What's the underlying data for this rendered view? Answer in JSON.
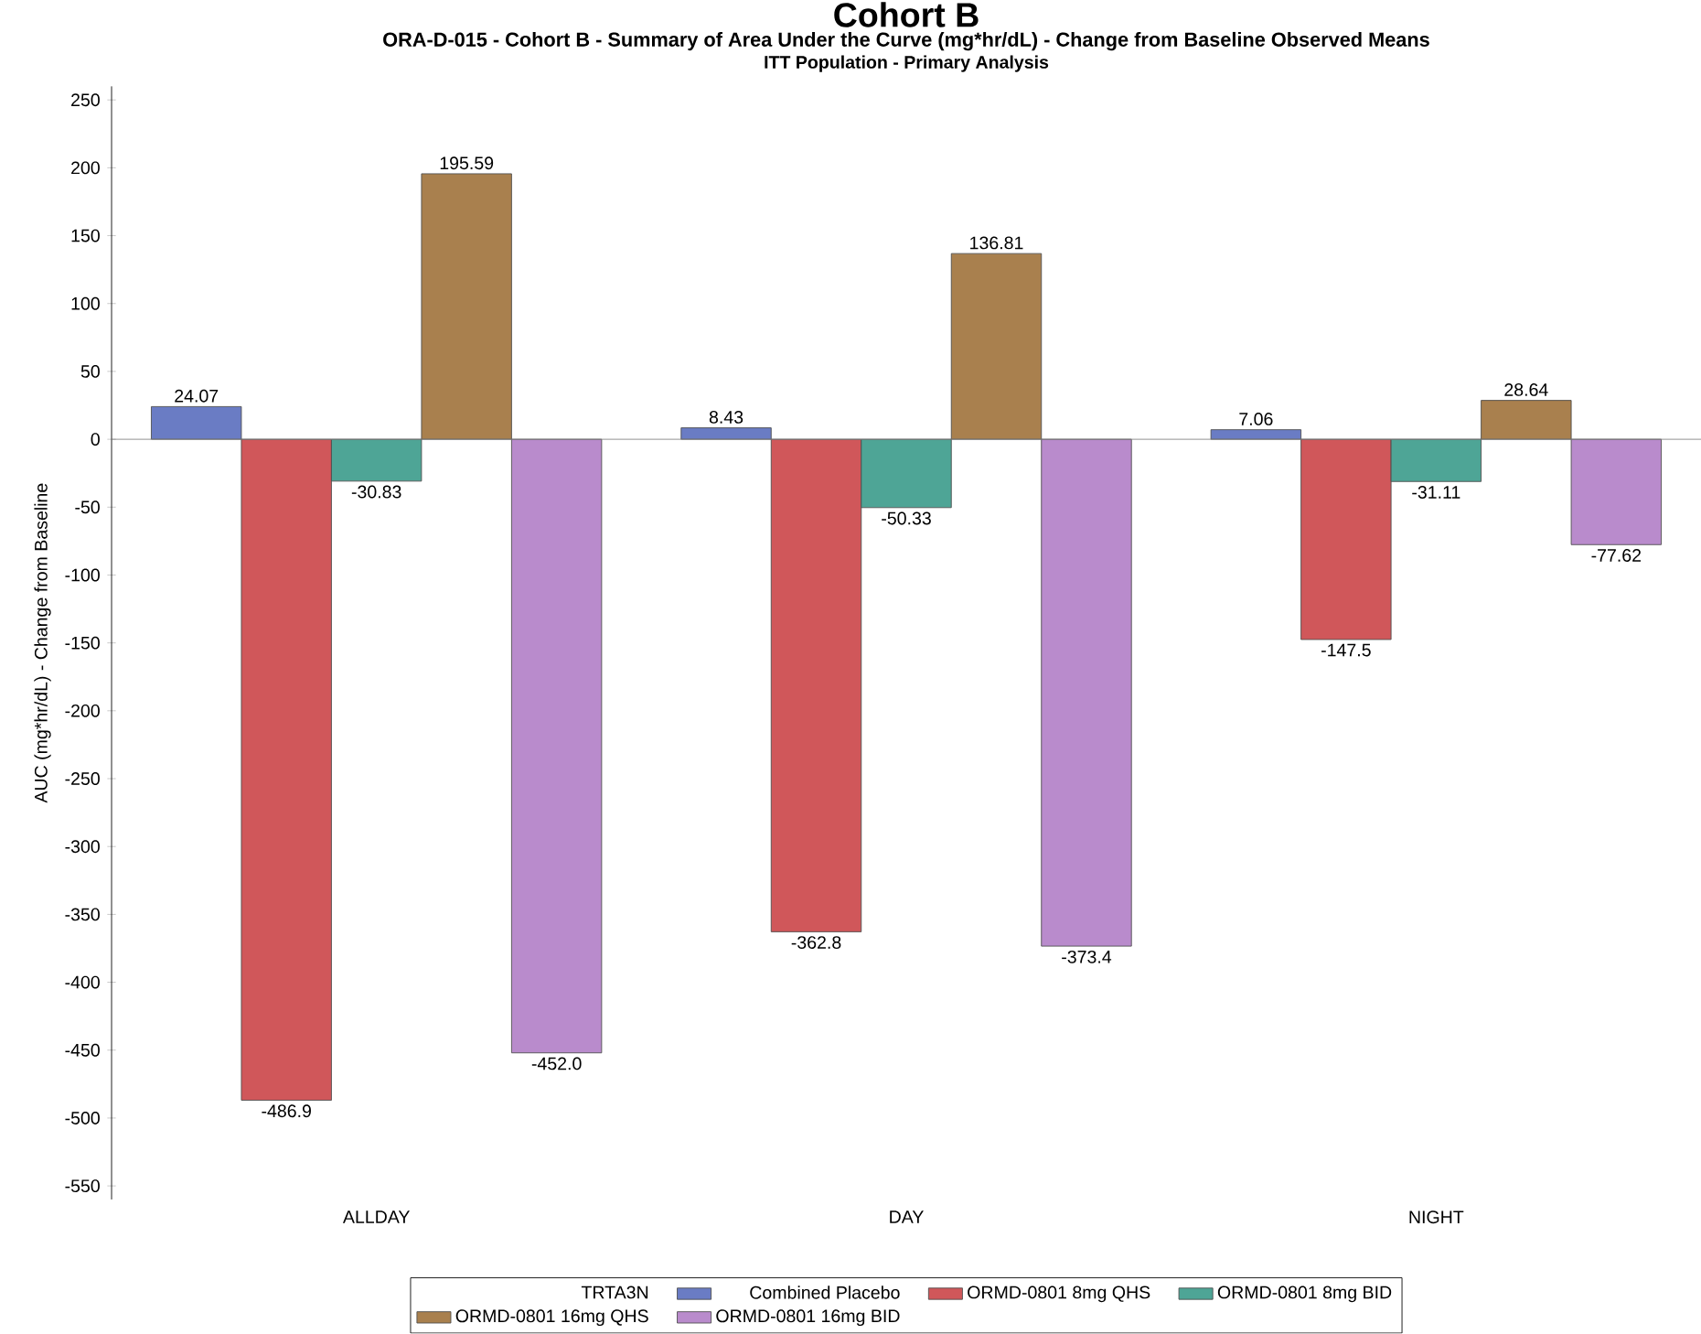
{
  "chart_data": {
    "type": "bar",
    "title": "ORA-D-015 - Cohort B - Summary of Area Under the Curve (mg*hr/dL) - Change from Baseline Observed Means",
    "subtitle": "ITT Population - Primary Analysis",
    "annotations": [
      "Cohort B"
    ],
    "ylabel": "AUC (mg*hr/dL) - Change from Baseline",
    "legend_title": "TRTA3N",
    "legend": "bottom",
    "categories": [
      "ALLDAY",
      "DAY",
      "NIGHT"
    ],
    "ylim": [
      -560,
      260
    ],
    "yticks": [
      -550,
      -500,
      -450,
      -400,
      -350,
      -300,
      -250,
      -200,
      -150,
      -100,
      -50,
      0,
      50,
      100,
      150,
      200,
      250
    ],
    "series": [
      {
        "name": "Combined Placebo",
        "color": "#6a7cc4",
        "values": [
          24.07,
          8.43,
          7.06
        ],
        "value_labels": [
          "24.07",
          "8.43",
          "7.06"
        ]
      },
      {
        "name": "ORMD-0801 8mg QHS",
        "color": "#d0575a",
        "values": [
          -486.9,
          -362.8,
          -147.5
        ],
        "value_labels": [
          "-486.9",
          "-362.8",
          "-147.5"
        ]
      },
      {
        "name": "ORMD-0801 8mg BID",
        "color": "#4ea596",
        "values": [
          -30.83,
          -50.33,
          -31.11
        ],
        "value_labels": [
          "-30.83",
          "-50.33",
          "-31.11"
        ]
      },
      {
        "name": "ORMD-0801 16mg QHS",
        "color": "#a9804e",
        "values": [
          195.59,
          136.81,
          28.64
        ],
        "value_labels": [
          "195.59",
          "136.81",
          "28.64"
        ]
      },
      {
        "name": "ORMD-0801 16mg BID",
        "color": "#b98bcc",
        "values": [
          -452.0,
          -373.4,
          -77.62
        ],
        "value_labels": [
          "-452.0",
          "-373.4",
          "-77.62"
        ]
      }
    ]
  }
}
